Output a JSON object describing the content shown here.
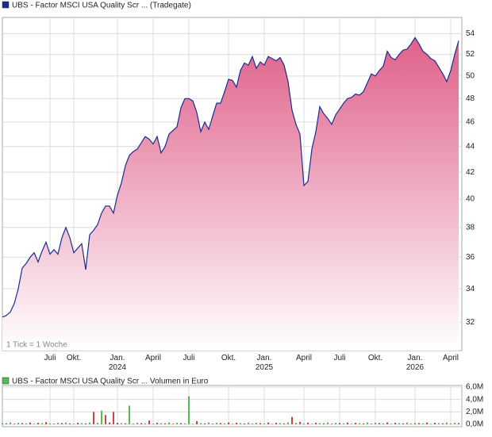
{
  "chart_data": [
    {
      "type": "area",
      "log_scale": true,
      "grid": true,
      "annotation": "1 Tick = 1 Woche",
      "categories": [
        null,
        null,
        null,
        null,
        null,
        null,
        null,
        null,
        null,
        null,
        null,
        null,
        "Juli",
        null,
        null,
        null,
        null,
        null,
        "Okt.",
        null,
        null,
        null,
        null,
        null,
        null,
        null,
        null,
        null,
        null,
        "Jan. 2024",
        null,
        null,
        null,
        null,
        null,
        null,
        null,
        null,
        "April",
        null,
        null,
        null,
        null,
        null,
        null,
        null,
        null,
        "Juli",
        null,
        null,
        null,
        null,
        null,
        null,
        null,
        null,
        null,
        "Okt.",
        null,
        null,
        null,
        null,
        null,
        null,
        null,
        null,
        "Jan. 2025",
        null,
        null,
        null,
        null,
        null,
        null,
        null,
        null,
        null,
        "April",
        null,
        null,
        null,
        null,
        null,
        null,
        null,
        null,
        "Juli",
        null,
        null,
        null,
        null,
        null,
        null,
        null,
        null,
        "Okt.",
        null,
        null,
        null,
        null,
        null,
        null,
        null,
        null,
        null,
        "Jan. 2026",
        null,
        null,
        null,
        null,
        null,
        null,
        null,
        null,
        "April",
        null,
        null
      ],
      "series": [
        {
          "name": "UBS - Factor MSCI USA Quality Scr ... (Tradegate)",
          "color": "#1a2c8f",
          "values": [
            32.3,
            32.4,
            32.6,
            33.1,
            34.0,
            35.3,
            35.6,
            36.0,
            36.3,
            35.7,
            36.4,
            37.0,
            36.2,
            36.5,
            36.2,
            37.3,
            38.0,
            37.3,
            36.3,
            36.6,
            36.9,
            35.2,
            37.5,
            37.8,
            38.2,
            39.0,
            39.5,
            39.5,
            39.0,
            40.3,
            41.2,
            42.5,
            43.3,
            43.6,
            43.8,
            44.3,
            44.8,
            44.6,
            44.2,
            44.8,
            43.5,
            44.0,
            45.0,
            45.3,
            45.6,
            47.2,
            48.0,
            48.0,
            47.8,
            46.8,
            45.2,
            46.0,
            45.4,
            46.5,
            47.6,
            47.6,
            48.6,
            49.7,
            49.6,
            49.0,
            50.5,
            51.2,
            51.0,
            51.8,
            50.7,
            51.3,
            51.0,
            51.8,
            51.6,
            51.4,
            51.7,
            51.0,
            49.5,
            47.0,
            45.8,
            45.0,
            41.0,
            41.3,
            43.8,
            45.2,
            47.3,
            46.7,
            46.3,
            45.8,
            46.6,
            47.1,
            47.6,
            48.0,
            48.1,
            48.4,
            48.3,
            48.6,
            49.4,
            50.2,
            50.0,
            50.5,
            50.9,
            52.3,
            51.7,
            51.5,
            52.0,
            52.4,
            52.5,
            53.0,
            53.6,
            53.0,
            52.3,
            52.0,
            51.6,
            51.4,
            50.8,
            50.2,
            49.5,
            50.5,
            52.0,
            53.3
          ]
        }
      ],
      "fill_color": "#e0608a",
      "ylim": [
        30.4,
        55.6
      ],
      "yticks": [
        32,
        34,
        36,
        38,
        40,
        42,
        44,
        46,
        48,
        50,
        52,
        54
      ]
    },
    {
      "type": "bar",
      "series": [
        {
          "name": "UBS - Factor MSCI USA Quality Scr ... Volumen in Euro",
          "color": "#55bb55",
          "values": [
            200000,
            150000,
            300000,
            100000,
            250000,
            200000,
            150000,
            300000,
            100000,
            250000,
            200000,
            350000,
            150000,
            100000,
            250000,
            200000,
            300000,
            150000,
            100000,
            250000,
            200000,
            150000,
            300000,
            2000000,
            250000,
            2200000,
            1500000,
            300000,
            2000000,
            250000,
            200000,
            150000,
            3000000,
            100000,
            250000,
            200000,
            150000,
            600000,
            100000,
            250000,
            200000,
            150000,
            300000,
            100000,
            250000,
            200000,
            150000,
            4500000,
            100000,
            500000,
            200000,
            150000,
            300000,
            100000,
            250000,
            200000,
            150000,
            300000,
            100000,
            250000,
            200000,
            150000,
            300000,
            100000,
            250000,
            200000,
            150000,
            300000,
            100000,
            250000,
            200000,
            150000,
            300000,
            1200000,
            250000,
            400000,
            150000,
            300000,
            100000,
            250000,
            200000,
            150000,
            300000,
            100000,
            250000,
            200000,
            150000,
            300000,
            100000,
            250000,
            200000,
            150000,
            300000,
            100000,
            250000,
            200000,
            150000,
            300000,
            100000,
            250000,
            200000,
            150000,
            300000,
            100000,
            250000,
            200000,
            150000,
            300000,
            100000,
            250000,
            200000,
            150000,
            300000,
            100000,
            250000,
            200000
          ],
          "colors": [
            "#55bb55",
            "#cc4444",
            "#55bb55",
            "#cc4444",
            "#55bb55",
            "#cc4444",
            "#55bb55",
            "#cc4444",
            "#55bb55",
            "#cc4444",
            "#55bb55",
            "#cc4444",
            "#55bb55",
            "#cc4444",
            "#55bb55",
            "#cc4444",
            "#55bb55",
            "#cc4444",
            "#55bb55",
            "#cc4444",
            "#55bb55",
            "#cc4444",
            "#55bb55",
            "#cc4444",
            "#55bb55",
            "#55bb55",
            "#cc4444",
            "#cc4444",
            "#cc4444",
            "#cc4444",
            "#55bb55",
            "#cc4444",
            "#55bb55",
            "#cc4444",
            "#55bb55",
            "#cc4444",
            "#55bb55",
            "#cc4444",
            "#55bb55",
            "#cc4444",
            "#55bb55",
            "#cc4444",
            "#55bb55",
            "#cc4444",
            "#55bb55",
            "#cc4444",
            "#55bb55",
            "#55bb55",
            "#55bb55",
            "#cc4444",
            "#55bb55",
            "#cc4444",
            "#55bb55",
            "#cc4444",
            "#55bb55",
            "#cc4444",
            "#55bb55",
            "#cc4444",
            "#55bb55",
            "#cc4444",
            "#55bb55",
            "#cc4444",
            "#55bb55",
            "#cc4444",
            "#55bb55",
            "#cc4444",
            "#55bb55",
            "#cc4444",
            "#55bb55",
            "#cc4444",
            "#55bb55",
            "#cc4444",
            "#55bb55",
            "#cc4444",
            "#55bb55",
            "#cc4444",
            "#55bb55",
            "#cc4444",
            "#55bb55",
            "#cc4444",
            "#55bb55",
            "#cc4444",
            "#55bb55",
            "#cc4444",
            "#55bb55",
            "#cc4444",
            "#55bb55",
            "#cc4444",
            "#55bb55",
            "#cc4444",
            "#55bb55",
            "#cc4444",
            "#55bb55",
            "#cc4444",
            "#55bb55",
            "#cc4444",
            "#55bb55",
            "#cc4444",
            "#55bb55",
            "#cc4444",
            "#55bb55",
            "#cc4444",
            "#55bb55",
            "#cc4444",
            "#55bb55",
            "#cc4444",
            "#55bb55",
            "#cc4444",
            "#55bb55",
            "#cc4444",
            "#55bb55",
            "#cc4444",
            "#55bb55",
            "#cc4444",
            "#55bb55",
            "#cc4444"
          ]
        }
      ],
      "ylim": [
        0,
        6000000
      ],
      "yticks": [
        {
          "value": 0,
          "label": "0,0M"
        },
        {
          "value": 2000000,
          "label": "2,0M"
        },
        {
          "value": 4000000,
          "label": "4,0M"
        },
        {
          "value": 6000000,
          "label": "6,0M"
        }
      ]
    }
  ]
}
